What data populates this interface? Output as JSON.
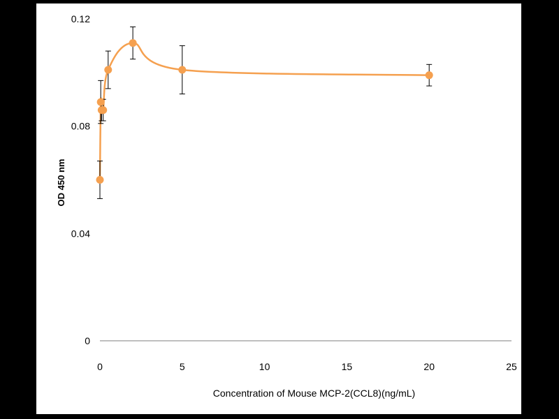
{
  "chart_data": {
    "type": "scatter",
    "title": "",
    "xlabel": "Concentration of Mouse MCP-2(CCL8)(ng/mL)",
    "ylabel": "OD 450 nm",
    "xlim": [
      0,
      25
    ],
    "ylim": [
      0,
      0.12
    ],
    "x_ticks": [
      "0",
      "5",
      "10",
      "15",
      "20",
      "25"
    ],
    "y_ticks": [
      "0",
      "0.04",
      "0.08",
      "0.12"
    ],
    "grid": false,
    "legend": "none",
    "smooth_line": true,
    "error_bars": true,
    "series_color": "#F5A04F",
    "series": [
      {
        "x": [
          0,
          0.05,
          0.1,
          0.2,
          0.5,
          2,
          5,
          20
        ],
        "y": [
          0.06,
          0.089,
          0.086,
          0.086,
          0.101,
          0.111,
          0.101,
          0.099
        ],
        "err": [
          0.007,
          0.008,
          0.004,
          0.004,
          0.007,
          0.006,
          0.009,
          0.004
        ]
      }
    ]
  }
}
